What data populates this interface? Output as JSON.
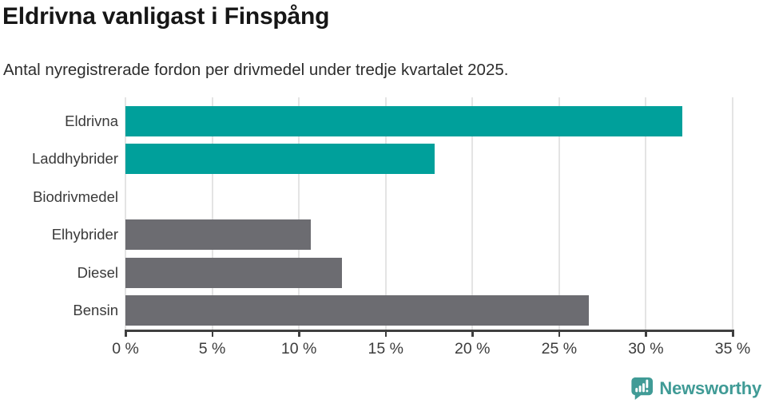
{
  "header": {
    "title": "Eldrivna vanligast i Finspång",
    "subtitle": "Antal nyregistrerade fordon per drivmedel under tredje kvartalet 2025."
  },
  "chart_data": {
    "type": "bar",
    "orientation": "horizontal",
    "title": "Eldrivna vanligast i Finspång",
    "subtitle": "Antal nyregistrerade fordon per drivmedel under tredje kvartalet 2025.",
    "categories": [
      "Eldrivna",
      "Laddhybrider",
      "Biodrivmedel",
      "Elhybrider",
      "Diesel",
      "Bensin"
    ],
    "values": [
      32.1,
      17.8,
      0,
      10.7,
      12.5,
      26.7
    ],
    "unit": "%",
    "bar_colors": [
      "#00a09b",
      "#00a09b",
      "#6c6c71",
      "#6c6c71",
      "#6c6c71",
      "#6c6c71"
    ],
    "xlim": [
      0,
      35
    ],
    "x_ticks": [
      0,
      5,
      10,
      15,
      20,
      25,
      30,
      35
    ],
    "x_tick_labels": [
      "0 %",
      "5 %",
      "10 %",
      "15 %",
      "20 %",
      "25 %",
      "30 %",
      "35 %"
    ],
    "grid": "vertical-gridlines-at-ticks",
    "legend": "none"
  },
  "colors": {
    "bar_teal": "#00a09b",
    "bar_gray": "#6c6c71",
    "gridline": "#e4e4e4",
    "axis": "#3f3f3f",
    "brand_teal": "#409b96"
  },
  "footer": {
    "brand_name": "Newsworthy",
    "logo_icon": "speech-bubble-with-bar-chart-and-exclamation"
  }
}
